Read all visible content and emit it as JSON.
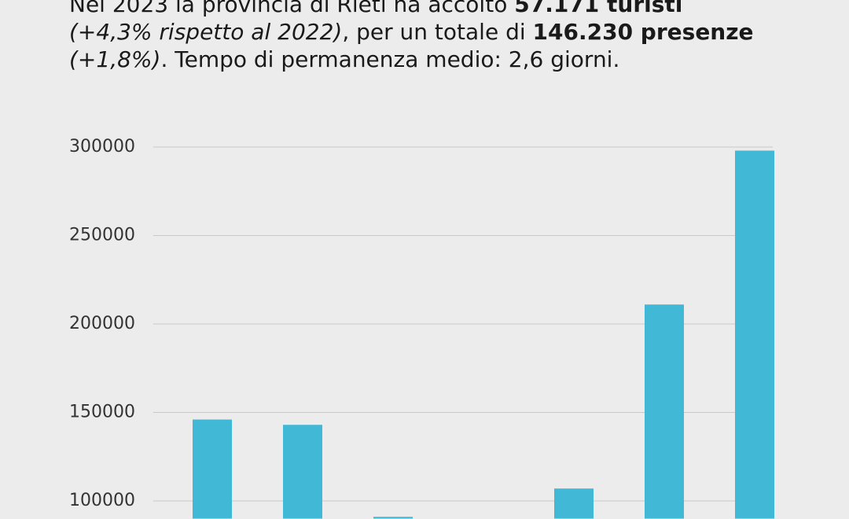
{
  "chart_data": {
    "type": "bar",
    "title_lines": [
      [
        "Nel 2023 la provincia di Rieti ha accolto ",
        "57.171 turisti"
      ],
      [
        "(+4,3% rispetto al 2022)",
        ", per un totale di ",
        "146.230 presenze"
      ],
      [
        "(+1,8%)",
        ". Tempo di permanenza medio: 2,6 giorni."
      ]
    ],
    "categories": [
      null,
      null,
      null,
      null,
      null,
      null,
      null
    ],
    "values": [
      146000,
      143000,
      91000,
      null,
      107000,
      211000,
      298000
    ],
    "color": "#41b8d5",
    "ylim": [
      90000,
      300000
    ],
    "yticks": [
      100000,
      150000,
      200000,
      250000,
      300000
    ],
    "grid": true
  }
}
